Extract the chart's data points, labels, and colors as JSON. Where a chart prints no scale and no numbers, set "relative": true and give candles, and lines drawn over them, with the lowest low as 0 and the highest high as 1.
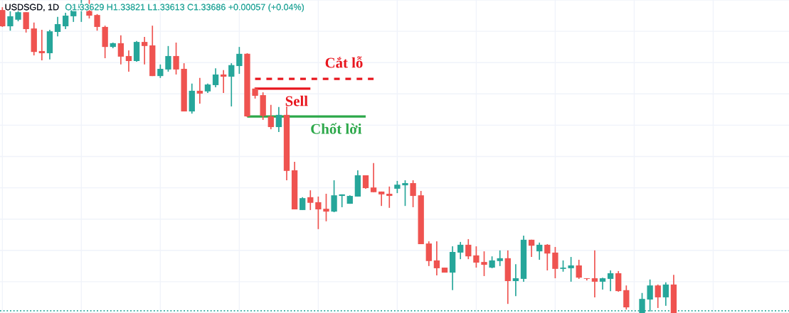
{
  "chart_data": {
    "type": "candlestick",
    "title": "USDSGD, 1D",
    "subtitle": "O1.33629 H1.33821 L1.33613 C1.33686 +0.00057 (+0.04%)",
    "relative": true,
    "grid": true,
    "categories": [
      null,
      null,
      null,
      null,
      null,
      null,
      null,
      null,
      null,
      null,
      null,
      null,
      null,
      null,
      null,
      null,
      null,
      null,
      null,
      null,
      null,
      null,
      null,
      null,
      null,
      null,
      null,
      null,
      null,
      null,
      null,
      null,
      null,
      null,
      null,
      null,
      null,
      null,
      null,
      null,
      null,
      null,
      null,
      null,
      null,
      null,
      null,
      null,
      null,
      null,
      null,
      null,
      null,
      null,
      null,
      null,
      null,
      null,
      null,
      null,
      null,
      null,
      null,
      null,
      null,
      null,
      null,
      null,
      null,
      null,
      null,
      null,
      null,
      null,
      null,
      null,
      null,
      null,
      null,
      null,
      null,
      null,
      null,
      null,
      null,
      null
    ],
    "ohlc": [
      [
        0.968,
        0.977,
        0.914,
        0.916
      ],
      [
        0.916,
        0.964,
        0.902,
        0.948
      ],
      [
        0.937,
        0.966,
        0.932,
        0.961
      ],
      [
        0.961,
        0.961,
        0.896,
        0.907
      ],
      [
        0.909,
        0.928,
        0.823,
        0.834
      ],
      [
        0.837,
        0.905,
        0.807,
        0.83
      ],
      [
        0.83,
        0.905,
        0.81,
        0.9
      ],
      [
        0.898,
        0.946,
        0.884,
        0.923
      ],
      [
        0.916,
        0.959,
        0.907,
        0.95
      ],
      [
        0.948,
        0.989,
        0.93,
        0.971
      ],
      [
        0.971,
        1,
        0.93,
        0.987
      ],
      [
        0.987,
        1,
        0.941,
        0.95
      ],
      [
        0.952,
        0.955,
        0.902,
        0.914
      ],
      [
        0.914,
        0.918,
        0.814,
        0.85
      ],
      [
        0.85,
        0.864,
        0.846,
        0.862
      ],
      [
        0.862,
        0.887,
        0.794,
        0.819
      ],
      [
        0.821,
        0.839,
        0.771,
        0.805
      ],
      [
        0.805,
        0.869,
        0.803,
        0.866
      ],
      [
        0.866,
        0.882,
        0.794,
        0.853
      ],
      [
        0.855,
        0.918,
        0.757,
        0.757
      ],
      [
        0.757,
        0.794,
        0.751,
        0.78
      ],
      [
        0.778,
        0.853,
        0.771,
        0.821
      ],
      [
        0.821,
        0.864,
        0.762,
        0.778
      ],
      [
        0.78,
        0.798,
        0.644,
        0.644
      ],
      [
        0.644,
        0.733,
        0.637,
        0.71
      ],
      [
        0.71,
        0.751,
        0.669,
        0.701
      ],
      [
        0.708,
        0.733,
        0.703,
        0.73
      ],
      [
        0.728,
        0.782,
        0.721,
        0.762
      ],
      [
        0.762,
        0.776,
        0.703,
        0.755
      ],
      [
        0.755,
        0.798,
        0.66,
        0.792
      ],
      [
        0.789,
        0.85,
        0.764,
        0.828
      ],
      [
        0.828,
        0.83,
        0.626,
        0.628
      ],
      [
        0.717,
        0.721,
        0.685,
        0.694
      ],
      [
        0.696,
        0.705,
        0.617,
        0.63
      ],
      [
        0.628,
        0.665,
        0.587,
        0.594
      ],
      [
        0.594,
        0.658,
        0.578,
        0.633
      ],
      [
        0.633,
        0.66,
        0.424,
        0.454
      ],
      [
        0.456,
        0.483,
        0.331,
        0.331
      ],
      [
        0.329,
        0.37,
        0.329,
        0.367
      ],
      [
        0.37,
        0.392,
        0.329,
        0.352
      ],
      [
        0.354,
        0.372,
        0.268,
        0.331
      ],
      [
        0.333,
        0.381,
        0.293,
        0.324
      ],
      [
        0.324,
        0.424,
        0.322,
        0.376
      ],
      [
        0.374,
        0.379,
        0.338,
        0.379
      ],
      [
        0.349,
        0.376,
        0.349,
        0.374
      ],
      [
        0.372,
        0.456,
        0.372,
        0.44
      ],
      [
        0.44,
        0.44,
        0.397,
        0.399
      ],
      [
        0.401,
        0.479,
        0.386,
        0.386
      ],
      [
        0.388,
        0.388,
        0.342,
        0.379
      ],
      [
        0.381,
        0.404,
        0.336,
        0.374
      ],
      [
        0.397,
        0.422,
        0.383,
        0.41
      ],
      [
        0.408,
        0.424,
        0.342,
        0.415
      ],
      [
        0.415,
        0.424,
        0.338,
        0.374
      ],
      [
        0.376,
        0.39,
        0.22,
        0.22
      ],
      [
        0.222,
        0.229,
        0.15,
        0.166
      ],
      [
        0.168,
        0.229,
        0.12,
        0.143
      ],
      [
        0.145,
        0.145,
        0.129,
        0.129
      ],
      [
        0.129,
        0.213,
        0.073,
        0.195
      ],
      [
        0.193,
        0.227,
        0.172,
        0.218
      ],
      [
        0.218,
        0.236,
        0.172,
        0.181
      ],
      [
        0.184,
        0.213,
        0.145,
        0.161
      ],
      [
        0.163,
        0.197,
        0.118,
        0.154
      ],
      [
        0.145,
        0.181,
        0.143,
        0.168
      ],
      [
        0.166,
        0.2,
        0.15,
        0.175
      ],
      [
        0.175,
        0.2,
        0.029,
        0.102
      ],
      [
        0.102,
        0.156,
        0.054,
        0.111
      ],
      [
        0.109,
        0.247,
        0.1,
        0.234
      ],
      [
        0.234,
        0.234,
        0.179,
        0.215
      ],
      [
        0.197,
        0.225,
        0.17,
        0.218
      ],
      [
        0.218,
        0.22,
        0.136,
        0.19
      ],
      [
        0.193,
        0.211,
        0.111,
        0.141
      ],
      [
        0.141,
        0.168,
        0.132,
        0.145
      ],
      [
        0.143,
        0.179,
        0.1,
        0.152
      ],
      [
        0.152,
        0.17,
        0.109,
        0.113
      ],
      [
        0.111,
        0.111,
        0.104,
        0.109
      ],
      [
        0.111,
        0.2,
        0.05,
        0.1
      ],
      [
        0.1,
        0.113,
        0.075,
        0.111
      ],
      [
        0.109,
        0.136,
        0.07,
        0.127
      ],
      [
        0.127,
        0.134,
        0.068,
        0.07
      ],
      [
        0.073,
        0.088,
        0.011,
        0.018
      ],
      null,
      [
        0,
        0.064,
        0,
        0.045
      ],
      [
        0.043,
        0.107,
        0.005,
        0.088
      ],
      [
        0.088,
        0.091,
        0.016,
        0.05
      ],
      [
        0.05,
        0.098,
        0.023,
        0.091
      ],
      [
        0.091,
        0.122,
        0,
        0
      ]
    ],
    "colors": [
      "#ef5350",
      "#26a69a",
      "#26a69a",
      "#ef5350",
      "#ef5350",
      "#ef5350",
      "#26a69a",
      "#26a69a",
      "#26a69a",
      "#26a69a",
      "#26a69a",
      "#ef5350",
      "#ef5350",
      "#ef5350",
      "#26a69a",
      "#ef5350",
      "#ef5350",
      "#26a69a",
      "#ef5350",
      "#ef5350",
      "#26a69a",
      "#26a69a",
      "#ef5350",
      "#ef5350",
      "#26a69a",
      "#ef5350",
      "#26a69a",
      "#26a69a",
      "#ef5350",
      "#26a69a",
      "#26a69a",
      "#ef5350",
      "#ef5350",
      "#ef5350",
      "#ef5350",
      "#26a69a",
      "#ef5350",
      "#ef5350",
      "#26a69a",
      "#ef5350",
      "#ef5350",
      "#ef5350",
      "#26a69a",
      "#26a69a",
      "#26a69a",
      "#26a69a",
      "#ef5350",
      "#ef5350",
      "#ef5350",
      "#ef5350",
      "#26a69a",
      "#26a69a",
      "#ef5350",
      "#ef5350",
      "#ef5350",
      "#ef5350",
      "#ef5350",
      "#26a69a",
      "#26a69a",
      "#ef5350",
      "#ef5350",
      "#ef5350",
      "#26a69a",
      "#26a69a",
      "#ef5350",
      "#26a69a",
      "#26a69a",
      "#ef5350",
      "#26a69a",
      "#ef5350",
      "#ef5350",
      "#26a69a",
      "#26a69a",
      "#ef5350",
      "#ef5350",
      "#ef5350",
      "#26a69a",
      "#26a69a",
      "#ef5350",
      "#ef5350",
      null,
      "#26a69a",
      "#26a69a",
      "#ef5350",
      "#26a69a",
      "#ef5350"
    ],
    "series": [
      {
        "type": "line",
        "name": "Cắt lỗ",
        "color": "#e8161e",
        "line_style": "dashed",
        "values": [
          null,
          null,
          null,
          null,
          null,
          null,
          null,
          null,
          null,
          null,
          null,
          null,
          null,
          null,
          null,
          null,
          null,
          null,
          null,
          null,
          null,
          null,
          null,
          null,
          null,
          null,
          null,
          null,
          null,
          null,
          null,
          null,
          0.748,
          0.748,
          0.748,
          0.748,
          0.748,
          0.748,
          0.748,
          0.748,
          0.748,
          0.748,
          0.748,
          0.748,
          0.748,
          0.748,
          0.748,
          0.748,
          null,
          null,
          null,
          null,
          null,
          null,
          null,
          null,
          null,
          null,
          null,
          null,
          null,
          null,
          null,
          null,
          null,
          null,
          null,
          null,
          null,
          null,
          null,
          null,
          null,
          null,
          null,
          null,
          null,
          null,
          null,
          null,
          null,
          null,
          null,
          null,
          null,
          null
        ]
      },
      {
        "type": "line",
        "name": "Sell",
        "color": "#e8161e",
        "line_style": "solid",
        "values": [
          null,
          null,
          null,
          null,
          null,
          null,
          null,
          null,
          null,
          null,
          null,
          null,
          null,
          null,
          null,
          null,
          null,
          null,
          null,
          null,
          null,
          null,
          null,
          null,
          null,
          null,
          null,
          null,
          null,
          null,
          null,
          null,
          0.717,
          0.717,
          0.717,
          0.717,
          0.717,
          0.717,
          0.717,
          0.717,
          null,
          null,
          null,
          null,
          null,
          null,
          null,
          null,
          null,
          null,
          null,
          null,
          null,
          null,
          null,
          null,
          null,
          null,
          null,
          null,
          null,
          null,
          null,
          null,
          null,
          null,
          null,
          null,
          null,
          null,
          null,
          null,
          null,
          null,
          null,
          null,
          null,
          null,
          null,
          null,
          null,
          null,
          null,
          null,
          null,
          null
        ]
      },
      {
        "type": "line",
        "name": "Chốt lời",
        "color": "#2ca84a",
        "line_style": "solid",
        "values": [
          null,
          null,
          null,
          null,
          null,
          null,
          null,
          null,
          null,
          null,
          null,
          null,
          null,
          null,
          null,
          null,
          null,
          null,
          null,
          null,
          null,
          null,
          null,
          null,
          null,
          null,
          null,
          null,
          null,
          null,
          null,
          0.628,
          0.628,
          0.628,
          0.628,
          0.628,
          0.628,
          0.628,
          0.628,
          0.628,
          0.628,
          0.628,
          0.628,
          0.628,
          0.628,
          0.628,
          0.628,
          null,
          null,
          null,
          null,
          null,
          null,
          null,
          null,
          null,
          null,
          null,
          null,
          null,
          null,
          null,
          null,
          null,
          null,
          null,
          null,
          null,
          null,
          null,
          null,
          null,
          null,
          null,
          null,
          null,
          null,
          null,
          null,
          null,
          null,
          null,
          null,
          null,
          null,
          null
        ]
      }
    ],
    "ref_lines": [
      {
        "axis": "y",
        "value": 0.007,
        "color": "#26a69a",
        "line_style": "dotted"
      }
    ]
  }
}
